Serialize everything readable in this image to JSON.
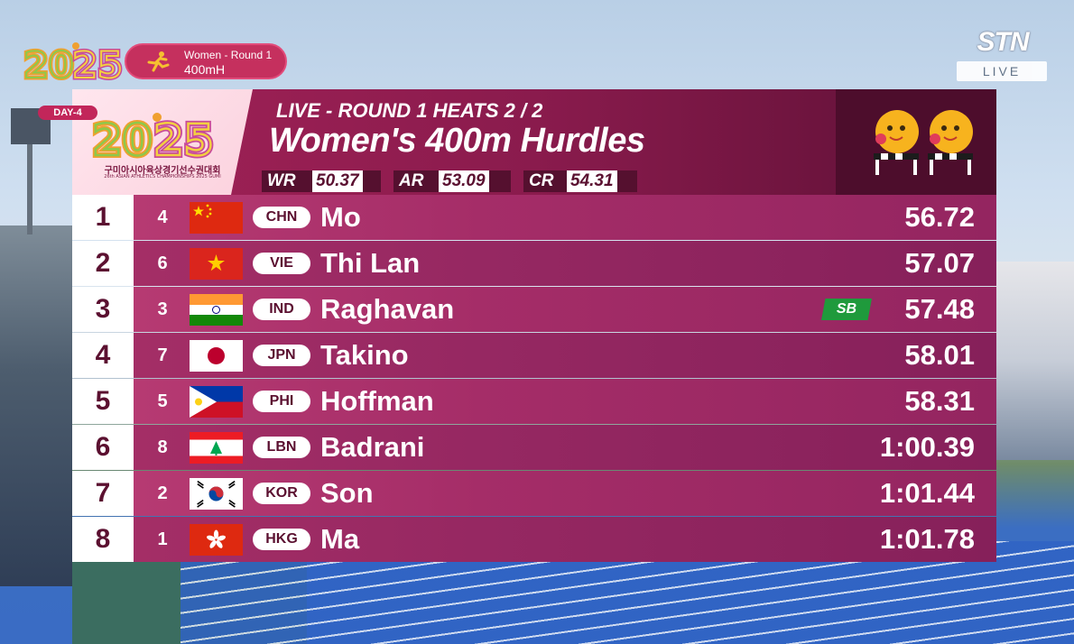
{
  "event_pill": {
    "line1": "Women - Round 1",
    "line2": "400mH"
  },
  "broadcaster": {
    "brand": "STN",
    "live": "LIVE"
  },
  "header": {
    "day": "DAY-4",
    "logo_korean": "구미아시아육상경기선수권대회",
    "logo_english": "26th ASIAN ATHLETICS CHAMPIONSHIPS 2025 GUMI",
    "subtitle": "LIVE - ROUND 1 HEATS 2 / 2",
    "title": "Women's 400m Hurdles",
    "records": [
      {
        "label": "WR",
        "value": "50.37"
      },
      {
        "label": "AR",
        "value": "53.09"
      },
      {
        "label": "CR",
        "value": "54.31"
      }
    ]
  },
  "results": [
    {
      "rank": "1",
      "lane": "4",
      "code": "CHN",
      "flag": "china-flag",
      "name": "Mo",
      "time": "56.72",
      "badge": ""
    },
    {
      "rank": "2",
      "lane": "6",
      "code": "VIE",
      "flag": "vietnam-flag",
      "name": "Thi Lan",
      "time": "57.07",
      "badge": ""
    },
    {
      "rank": "3",
      "lane": "3",
      "code": "IND",
      "flag": "india-flag",
      "name": "Raghavan",
      "time": "57.48",
      "badge": "SB"
    },
    {
      "rank": "4",
      "lane": "7",
      "code": "JPN",
      "flag": "japan-flag",
      "name": "Takino",
      "time": "58.01",
      "badge": ""
    },
    {
      "rank": "5",
      "lane": "5",
      "code": "PHI",
      "flag": "philippines-flag",
      "name": "Hoffman",
      "time": "58.31",
      "badge": ""
    },
    {
      "rank": "6",
      "lane": "8",
      "code": "LBN",
      "flag": "lebanon-flag",
      "name": "Badrani",
      "time": "1:00.39",
      "badge": ""
    },
    {
      "rank": "7",
      "lane": "2",
      "code": "KOR",
      "flag": "korea-flag",
      "name": "Son",
      "time": "1:01.44",
      "badge": ""
    },
    {
      "rank": "8",
      "lane": "1",
      "code": "HKG",
      "flag": "hongkong-flag",
      "name": "Ma",
      "time": "1:01.78",
      "badge": ""
    }
  ],
  "colors": {
    "accent": "#a22257",
    "row_light": "#b63a72",
    "row_dark": "#962862",
    "sb_green": "#1f9a3c"
  }
}
